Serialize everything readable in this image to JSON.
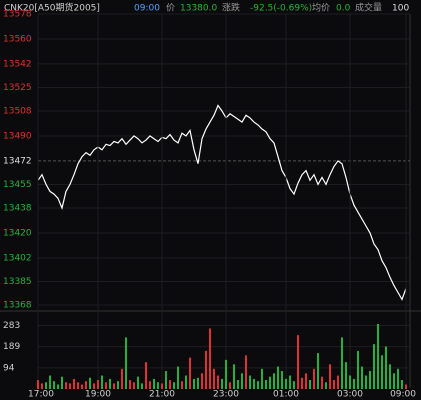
{
  "chart_data": [
    {
      "type": "line",
      "header": {
        "symbol": "CNK20[A50期货2005]",
        "time": "09:00",
        "price_label": "价",
        "price": "13380.0",
        "change_label": "涨跌",
        "change": "-92.5(-0.69%)",
        "avg_label": "均价",
        "avg": "0.0",
        "volume_label": "成交量",
        "volume": "100"
      },
      "color": "#ffffff",
      "up_color": "#e03030",
      "down_color": "#22b43a",
      "mid_color": "#dddddd",
      "xlim": [
        0,
        92
      ],
      "ylim": [
        13368,
        13578
      ],
      "yticks": [
        13578,
        13560,
        13542,
        13525,
        13508,
        13490,
        13472,
        13455,
        13438,
        13420,
        13402,
        13385,
        13368
      ],
      "values": [
        13458,
        13462,
        13455,
        13450,
        13448,
        13445,
        13438,
        13450,
        13455,
        13462,
        13470,
        13475,
        13478,
        13476,
        13480,
        13482,
        13480,
        13484,
        13483,
        13486,
        13485,
        13488,
        13484,
        13487,
        13490,
        13488,
        13485,
        13487,
        13490,
        13488,
        13486,
        13489,
        13488,
        13491,
        13487,
        13485,
        13492,
        13490,
        13494,
        13480,
        13470,
        13488,
        13495,
        13500,
        13505,
        13512,
        13508,
        13503,
        13506,
        13504,
        13502,
        13500,
        13505,
        13503,
        13500,
        13498,
        13495,
        13493,
        13488,
        13485,
        13475,
        13465,
        13460,
        13452,
        13448,
        13456,
        13462,
        13465,
        13458,
        13462,
        13455,
        13460,
        13455,
        13462,
        13468,
        13472,
        13470,
        13460,
        13448,
        13440,
        13435,
        13430,
        13425,
        13420,
        13412,
        13408,
        13400,
        13395,
        13388,
        13382,
        13377,
        13372,
        13380
      ]
    },
    {
      "type": "bar",
      "xlim": [
        0,
        92
      ],
      "ylim": [
        0,
        330
      ],
      "yticks": [
        283,
        189,
        94
      ],
      "xticks": [
        {
          "value": 0,
          "label": "17:00"
        },
        {
          "value": 15,
          "label": "19:00"
        },
        {
          "value": 31,
          "label": "21:00"
        },
        {
          "value": 47,
          "label": "23:00"
        },
        {
          "value": 62,
          "label": "01:00"
        },
        {
          "value": 78,
          "label": "03:00"
        },
        {
          "value": 92,
          "label": "09:00"
        }
      ],
      "values": [
        40,
        25,
        30,
        60,
        35,
        20,
        55,
        30,
        25,
        45,
        30,
        20,
        35,
        50,
        25,
        40,
        60,
        30,
        45,
        25,
        35,
        90,
        230,
        40,
        30,
        55,
        25,
        120,
        35,
        45,
        30,
        25,
        80,
        40,
        30,
        100,
        35,
        60,
        140,
        45,
        50,
        70,
        170,
        270,
        90,
        60,
        45,
        130,
        30,
        110,
        40,
        70,
        150,
        60,
        45,
        35,
        90,
        40,
        55,
        70,
        100,
        80,
        45,
        60,
        35,
        240,
        50,
        70,
        40,
        90,
        160,
        55,
        30,
        110,
        40,
        60,
        230,
        120,
        60,
        45,
        170,
        100,
        60,
        80,
        200,
        290,
        150,
        190,
        110,
        70,
        90,
        40,
        20
      ]
    }
  ]
}
